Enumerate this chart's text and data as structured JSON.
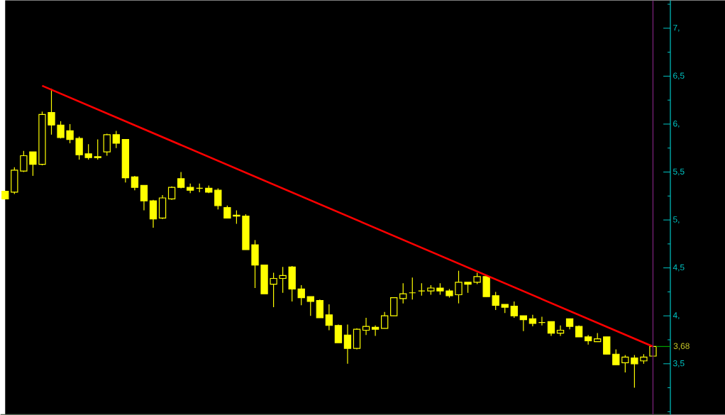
{
  "chart_data": {
    "type": "candlestick",
    "categories": [
      null,
      null,
      null,
      null,
      null,
      null,
      null,
      null,
      null,
      null,
      null,
      null,
      null,
      null,
      null,
      null,
      null,
      null,
      null,
      null,
      null,
      null,
      null,
      null,
      null,
      null,
      null,
      null,
      null,
      null,
      null,
      null,
      null,
      null,
      null,
      null,
      null,
      null,
      null,
      null,
      null,
      null,
      null,
      null,
      null,
      null,
      null,
      null,
      null,
      null,
      null,
      null,
      null,
      null,
      null,
      null,
      null,
      null,
      null,
      null,
      null,
      null,
      null,
      null,
      null,
      null,
      null,
      null,
      null,
      null,
      null
    ],
    "ohlc": [
      [
        5.3,
        5.3,
        5.22,
        5.22
      ],
      [
        5.29,
        5.55,
        5.27,
        5.52
      ],
      [
        5.51,
        5.72,
        5.5,
        5.67
      ],
      [
        5.71,
        5.71,
        5.46,
        5.58
      ],
      [
        5.58,
        6.13,
        5.57,
        6.1
      ],
      [
        6.12,
        6.37,
        5.89,
        5.99
      ],
      [
        5.99,
        6.03,
        5.85,
        5.86
      ],
      [
        5.93,
        6.0,
        5.8,
        5.84
      ],
      [
        5.85,
        5.87,
        5.63,
        5.68
      ],
      [
        5.69,
        5.79,
        5.63,
        5.65
      ],
      [
        5.66,
        5.84,
        5.63,
        5.65
      ],
      [
        5.71,
        5.9,
        5.67,
        5.89
      ],
      [
        5.89,
        5.93,
        5.75,
        5.8
      ],
      [
        5.84,
        5.84,
        5.39,
        5.44
      ],
      [
        5.45,
        5.46,
        5.31,
        5.34
      ],
      [
        5.36,
        5.36,
        5.1,
        5.2
      ],
      [
        5.2,
        5.21,
        4.92,
        5.01
      ],
      [
        5.02,
        5.26,
        5.01,
        5.23
      ],
      [
        5.22,
        5.35,
        5.21,
        5.34
      ],
      [
        5.43,
        5.5,
        5.33,
        5.34
      ],
      [
        5.34,
        5.38,
        5.28,
        5.31
      ],
      [
        5.33,
        5.38,
        5.29,
        5.33
      ],
      [
        5.33,
        5.36,
        5.28,
        5.29
      ],
      [
        5.31,
        5.33,
        5.11,
        5.15
      ],
      [
        5.13,
        5.15,
        5.02,
        5.02
      ],
      [
        5.05,
        5.1,
        4.96,
        5.04
      ],
      [
        5.04,
        5.06,
        4.69,
        4.69
      ],
      [
        4.74,
        4.79,
        4.29,
        4.53
      ],
      [
        4.53,
        4.53,
        4.23,
        4.23
      ],
      [
        4.33,
        4.45,
        4.09,
        4.39
      ],
      [
        4.39,
        4.51,
        4.24,
        4.42
      ],
      [
        4.51,
        4.52,
        4.15,
        4.28
      ],
      [
        4.28,
        4.32,
        4.11,
        4.19
      ],
      [
        4.2,
        4.2,
        4.0,
        4.15
      ],
      [
        4.16,
        4.17,
        3.98,
        3.98
      ],
      [
        4.01,
        4.12,
        3.85,
        3.9
      ],
      [
        3.9,
        3.91,
        3.72,
        3.72
      ],
      [
        3.8,
        3.91,
        3.5,
        3.66
      ],
      [
        3.66,
        3.87,
        3.65,
        3.86
      ],
      [
        3.85,
        3.98,
        3.8,
        3.89
      ],
      [
        3.88,
        3.9,
        3.79,
        3.86
      ],
      [
        3.87,
        4.04,
        3.87,
        4.0
      ],
      [
        4.0,
        4.19,
        4.0,
        4.19
      ],
      [
        4.18,
        4.34,
        4.13,
        4.23
      ],
      [
        4.24,
        4.4,
        4.17,
        4.24
      ],
      [
        4.26,
        4.34,
        4.21,
        4.26
      ],
      [
        4.26,
        4.32,
        4.22,
        4.29
      ],
      [
        4.29,
        4.34,
        4.22,
        4.26
      ],
      [
        4.26,
        4.28,
        4.19,
        4.21
      ],
      [
        4.22,
        4.47,
        4.13,
        4.35
      ],
      [
        4.35,
        4.35,
        4.24,
        4.33
      ],
      [
        4.35,
        4.45,
        4.33,
        4.41
      ],
      [
        4.41,
        4.43,
        4.2,
        4.2
      ],
      [
        4.21,
        4.25,
        4.06,
        4.11
      ],
      [
        4.12,
        4.12,
        4.03,
        4.09
      ],
      [
        4.1,
        4.15,
        3.98,
        4.0
      ],
      [
        4.0,
        4.0,
        3.84,
        3.96
      ],
      [
        3.97,
        4.01,
        3.89,
        3.92
      ],
      [
        3.93,
        3.99,
        3.9,
        3.93
      ],
      [
        3.94,
        3.94,
        3.79,
        3.82
      ],
      [
        3.82,
        3.9,
        3.79,
        3.85
      ],
      [
        3.97,
        3.97,
        3.86,
        3.89
      ],
      [
        3.89,
        3.9,
        3.78,
        3.78
      ],
      [
        3.78,
        3.8,
        3.7,
        3.74
      ],
      [
        3.73,
        3.82,
        3.73,
        3.76
      ],
      [
        3.78,
        3.78,
        3.6,
        3.6
      ],
      [
        3.6,
        3.65,
        3.49,
        3.49
      ],
      [
        3.51,
        3.59,
        3.41,
        3.57
      ],
      [
        3.56,
        3.59,
        3.25,
        3.5
      ],
      [
        3.53,
        3.6,
        3.5,
        3.57
      ],
      [
        3.58,
        3.69,
        3.58,
        3.68
      ]
    ],
    "color": "#ffff00",
    "series": [
      {
        "type": "line",
        "color": "#ff0000",
        "values": [
          null,
          null,
          null,
          null,
          6.4,
          null,
          null,
          null,
          null,
          null,
          null,
          null,
          null,
          null,
          null,
          null,
          null,
          null,
          null,
          null,
          null,
          null,
          null,
          null,
          null,
          null,
          null,
          null,
          null,
          null,
          null,
          null,
          null,
          null,
          null,
          null,
          null,
          null,
          null,
          null,
          null,
          null,
          null,
          null,
          null,
          null,
          null,
          null,
          null,
          null,
          null,
          null,
          null,
          null,
          null,
          null,
          null,
          null,
          null,
          null,
          null,
          null,
          null,
          null,
          null,
          null,
          null,
          null,
          null,
          null,
          3.68
        ]
      }
    ],
    "ylim": [
      2.97,
      7.29
    ],
    "yticks": [
      {
        "value": 3,
        "label": null
      },
      {
        "value": 3.25,
        "label": null
      },
      {
        "value": 3.5,
        "label": "3,5"
      },
      {
        "value": 3.75,
        "label": null
      },
      {
        "value": 4,
        "label": "4,"
      },
      {
        "value": 4.25,
        "label": null
      },
      {
        "value": 4.5,
        "label": "4,5"
      },
      {
        "value": 4.75,
        "label": null
      },
      {
        "value": 5,
        "label": "5,"
      },
      {
        "value": 5.25,
        "label": null
      },
      {
        "value": 5.5,
        "label": "5,5"
      },
      {
        "value": 5.75,
        "label": null
      },
      {
        "value": 6,
        "label": "6,"
      },
      {
        "value": 6.25,
        "label": null
      },
      {
        "value": 6.5,
        "label": "6,5"
      },
      {
        "value": 6.75,
        "label": null
      },
      {
        "value": 7,
        "label": "7,"
      },
      {
        "value": 7.25,
        "label": null
      }
    ],
    "annotations": [
      "3,68"
    ],
    "tick_labels": "y"
  }
}
